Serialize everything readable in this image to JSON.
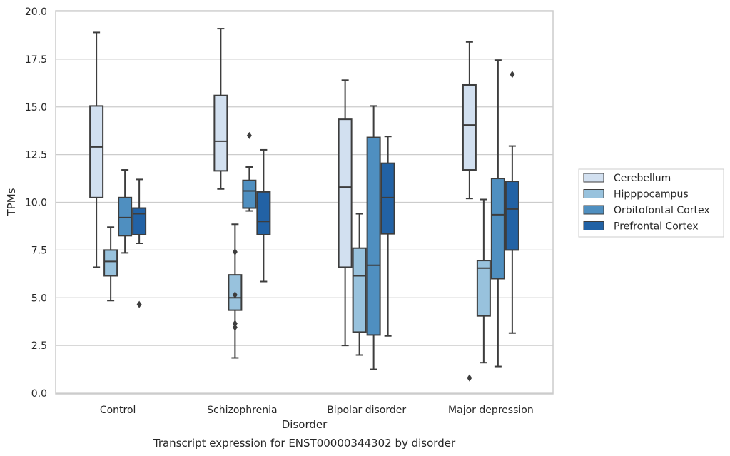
{
  "chart_data": {
    "type": "box",
    "title": "",
    "caption": "Transcript expression for ENST00000344302 by disorder",
    "xlabel": "Disorder",
    "ylabel": "TPMs",
    "ylim": [
      0,
      20
    ],
    "yticks": [
      "0.0",
      "2.5",
      "5.0",
      "7.5",
      "10.0",
      "12.5",
      "15.0",
      "17.5",
      "20.0"
    ],
    "ytick_values": [
      0,
      2.5,
      5,
      7.5,
      10,
      12.5,
      15,
      17.5,
      20
    ],
    "grid": "horizontal",
    "legend_position": "right",
    "categories": [
      "Control",
      "Schizophrenia",
      "Bipolar disorder",
      "Major depression"
    ],
    "series": [
      {
        "name": "Cerebellum",
        "color": "#d2e0f0",
        "boxes": [
          {
            "whislo": 6.6,
            "q1": 10.25,
            "med": 12.9,
            "q3": 15.05,
            "whishi": 18.9,
            "fliers": []
          },
          {
            "whislo": 10.7,
            "q1": 11.65,
            "med": 13.2,
            "q3": 15.6,
            "whishi": 19.1,
            "fliers": []
          },
          {
            "whislo": 2.5,
            "q1": 6.6,
            "med": 10.8,
            "q3": 14.35,
            "whishi": 16.4,
            "fliers": []
          },
          {
            "whislo": 10.2,
            "q1": 11.7,
            "med": 14.05,
            "q3": 16.15,
            "whishi": 18.4,
            "fliers": [
              0.8
            ]
          }
        ]
      },
      {
        "name": "Hipppocampus",
        "color": "#98c2dd",
        "boxes": [
          {
            "whislo": 4.85,
            "q1": 6.15,
            "med": 6.9,
            "q3": 7.5,
            "whishi": 8.7,
            "fliers": []
          },
          {
            "whislo": 1.85,
            "q1": 4.35,
            "med": 5.0,
            "q3": 6.2,
            "whishi": 8.85,
            "fliers": [
              3.45,
              3.65,
              5.15,
              7.4
            ]
          },
          {
            "whislo": 2.0,
            "q1": 3.2,
            "med": 6.15,
            "q3": 7.6,
            "whishi": 9.4,
            "fliers": []
          },
          {
            "whislo": 1.6,
            "q1": 4.05,
            "med": 6.55,
            "q3": 6.95,
            "whishi": 10.15,
            "fliers": []
          }
        ]
      },
      {
        "name": "Orbitofontal Cortex",
        "color": "#4f8fc0",
        "boxes": [
          {
            "whislo": 7.35,
            "q1": 8.25,
            "med": 9.2,
            "q3": 10.25,
            "whishi": 11.7,
            "fliers": []
          },
          {
            "whislo": 9.55,
            "q1": 9.7,
            "med": 10.6,
            "q3": 11.15,
            "whishi": 11.85,
            "fliers": [
              13.5
            ]
          },
          {
            "whislo": 1.25,
            "q1": 3.05,
            "med": 6.7,
            "q3": 13.4,
            "whishi": 15.05,
            "fliers": []
          },
          {
            "whislo": 1.4,
            "q1": 6.0,
            "med": 9.35,
            "q3": 11.25,
            "whishi": 17.45,
            "fliers": []
          }
        ]
      },
      {
        "name": "Prefrontal Cortex",
        "color": "#2262a5",
        "boxes": [
          {
            "whislo": 7.85,
            "q1": 8.3,
            "med": 9.4,
            "q3": 9.7,
            "whishi": 11.2,
            "fliers": [
              4.65
            ]
          },
          {
            "whislo": 5.85,
            "q1": 8.3,
            "med": 9.0,
            "q3": 10.55,
            "whishi": 12.75,
            "fliers": []
          },
          {
            "whislo": 3.0,
            "q1": 8.35,
            "med": 10.25,
            "q3": 12.05,
            "whishi": 13.45,
            "fliers": []
          },
          {
            "whislo": 3.15,
            "q1": 7.5,
            "med": 9.65,
            "q3": 11.1,
            "whishi": 12.95,
            "fliers": [
              16.7
            ]
          }
        ]
      }
    ]
  }
}
